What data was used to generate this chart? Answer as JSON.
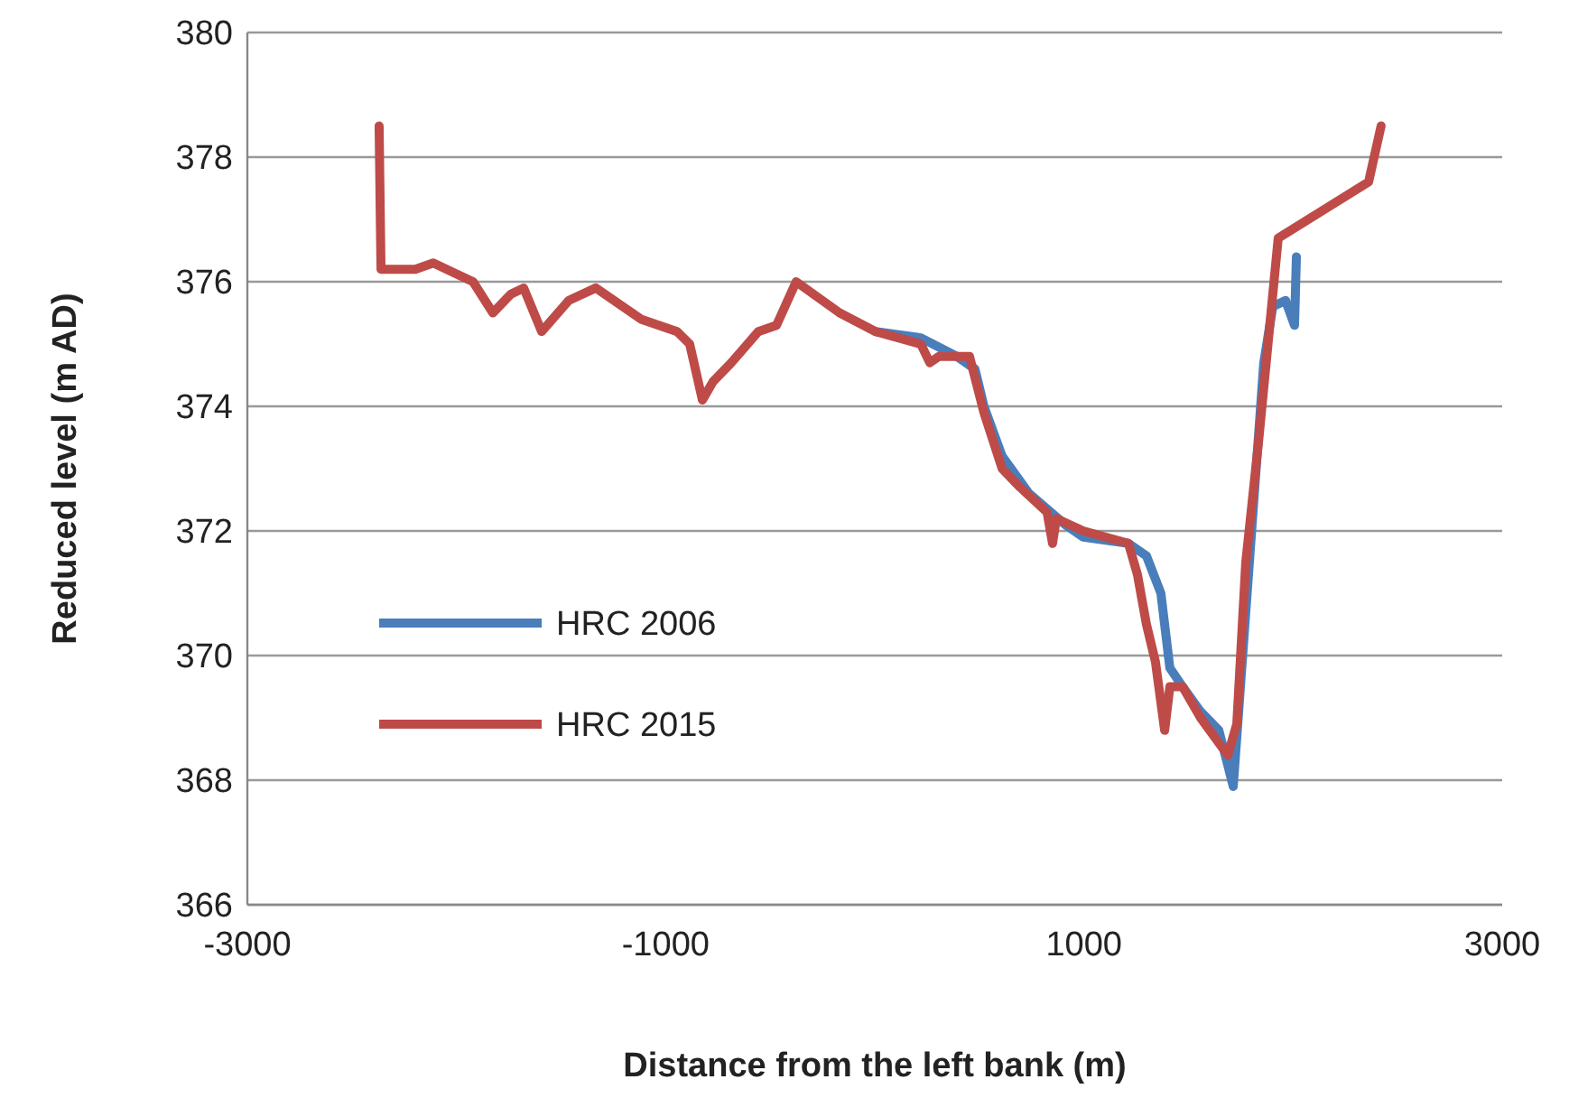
{
  "chart_data": {
    "type": "line",
    "xlabel": "Distance from the left bank (m)",
    "ylabel": "Reduced level (m AD)",
    "xlim": [
      -3000,
      3000
    ],
    "xticks": [
      -3000,
      -1000,
      1000,
      3000
    ],
    "ylim": [
      366,
      380
    ],
    "yticks": [
      366,
      368,
      370,
      372,
      374,
      376,
      378,
      380
    ],
    "grid": "y",
    "legend": "left",
    "marker": "none",
    "line_style": "solid",
    "series": [
      {
        "name": "HRC 2006",
        "color": "#4a7ebb",
        "x": [
          4,
          220,
          393,
          479,
          522,
          609,
          738,
          911,
          997,
          1213,
          1299,
          1368,
          1411,
          1472,
          1558,
          1645,
          1714,
          1774,
          1817,
          1860,
          1903,
          1964,
          2007,
          2016
        ],
        "values": [
          375.2,
          375.1,
          374.8,
          374.6,
          374.0,
          373.2,
          372.6,
          372.1,
          371.9,
          371.8,
          371.6,
          371.0,
          369.8,
          369.5,
          369.1,
          368.8,
          367.9,
          370.7,
          372.7,
          374.7,
          375.6,
          375.7,
          375.3,
          376.4
        ]
      },
      {
        "name": "HRC 2015",
        "color": "#be4b48",
        "x": [
          -2370,
          -2361,
          -2197,
          -2111,
          -1921,
          -1826,
          -1740,
          -1679,
          -1593,
          -1463,
          -1334,
          -1118,
          -945,
          -885,
          -824,
          -773,
          -686,
          -557,
          -470,
          -376,
          -168,
          4,
          220,
          263,
          306,
          453,
          522,
          609,
          695,
          824,
          850,
          868,
          997,
          1213,
          1256,
          1299,
          1342,
          1386,
          1411,
          1472,
          1558,
          1688,
          1731,
          1774,
          1834,
          1929,
          2361,
          2421
        ],
        "values": [
          378.5,
          376.2,
          376.2,
          376.3,
          376.0,
          375.5,
          375.8,
          375.9,
          375.2,
          375.7,
          375.9,
          375.4,
          375.2,
          375.0,
          374.1,
          374.4,
          374.7,
          375.2,
          375.3,
          376.0,
          375.5,
          375.2,
          375.0,
          374.7,
          374.8,
          374.8,
          373.9,
          373.0,
          372.7,
          372.3,
          371.8,
          372.2,
          372.0,
          371.8,
          371.3,
          370.5,
          369.9,
          368.8,
          369.5,
          369.5,
          369.0,
          368.4,
          368.9,
          371.5,
          373.4,
          376.7,
          377.6,
          378.5
        ]
      }
    ]
  }
}
